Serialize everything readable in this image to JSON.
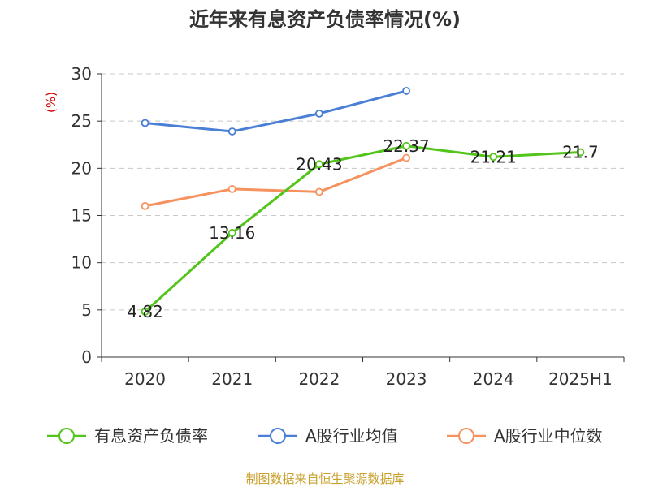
{
  "chart_data": {
    "type": "line",
    "title": "近年来有息资产负债率情况(%)",
    "ylabel": "(%)",
    "categories": [
      "2020",
      "2021",
      "2022",
      "2023",
      "2024",
      "2025H1"
    ],
    "ylim": [
      0,
      30
    ],
    "yticks": [
      0,
      5,
      10,
      15,
      20,
      25,
      30
    ],
    "grid": true,
    "legend_position": "bottom",
    "series": [
      {
        "name": "有息资产负债率",
        "color": "#52c41a",
        "values": [
          4.82,
          13.16,
          20.43,
          22.37,
          21.21,
          21.7
        ],
        "labels": [
          "4.82",
          "13.16",
          "20.43",
          "22.37",
          "21.21",
          "21.7"
        ]
      },
      {
        "name": "A股行业均值",
        "color": "#4a7fd6",
        "values": [
          24.8,
          23.9,
          25.8,
          28.2,
          null,
          null
        ]
      },
      {
        "name": "A股行业中位数",
        "color": "#f5925e",
        "values": [
          16.0,
          17.8,
          17.5,
          21.1,
          null,
          null
        ]
      }
    ]
  },
  "source": "制图数据来自恒生聚源数据库"
}
